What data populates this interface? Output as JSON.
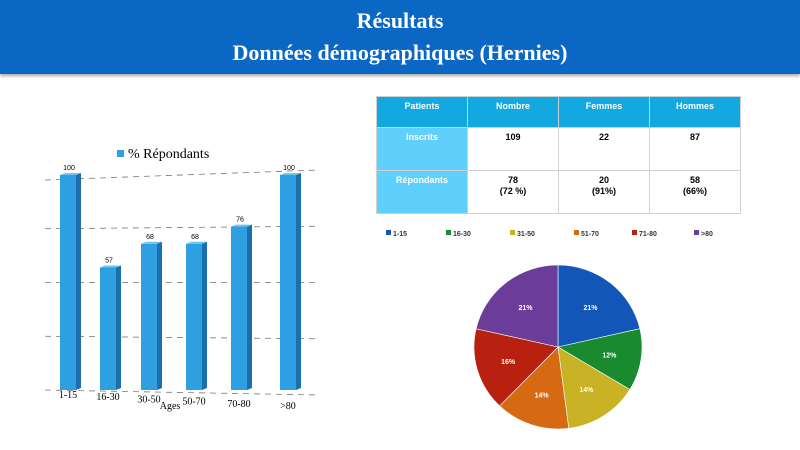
{
  "header": {
    "title": "Résultats",
    "subtitle": "Données démographiques (Hernies)"
  },
  "table": {
    "headers": [
      "Patients",
      "Nombre",
      "Femmes",
      "Hommes"
    ],
    "rows": [
      {
        "label": "Inscrits",
        "cells": [
          [
            "109"
          ],
          [
            "22"
          ],
          [
            "87"
          ]
        ]
      },
      {
        "label": "Répondants",
        "cells": [
          [
            "78",
            "(72 %)"
          ],
          [
            "20",
            "(91%)"
          ],
          [
            "58",
            "(66%)"
          ]
        ]
      }
    ]
  },
  "chart_data": [
    {
      "type": "bar",
      "legend": "% Répondants",
      "categories": [
        "1-15",
        "16-30",
        "30-50",
        "50-70",
        "70-80",
        ">80"
      ],
      "values": [
        100,
        57,
        68,
        68,
        76,
        100
      ],
      "xlabel": "Ages",
      "ylabel": "",
      "ylim": [
        0,
        100
      ],
      "color": "#2e9fe0",
      "grid": true
    },
    {
      "type": "pie",
      "categories": [
        "1-15",
        "16-30",
        "31-50",
        "51-70",
        "71-80",
        ">80"
      ],
      "values": [
        21,
        12,
        14,
        14,
        16,
        21
      ],
      "labels": [
        "21%",
        "12%",
        "14%",
        "14%",
        "16%",
        "21%"
      ],
      "colors": [
        "#1257b8",
        "#1a8a2e",
        "#c9b225",
        "#d66a12",
        "#b8200f",
        "#6b3c98"
      ],
      "legend_position": "top"
    }
  ]
}
